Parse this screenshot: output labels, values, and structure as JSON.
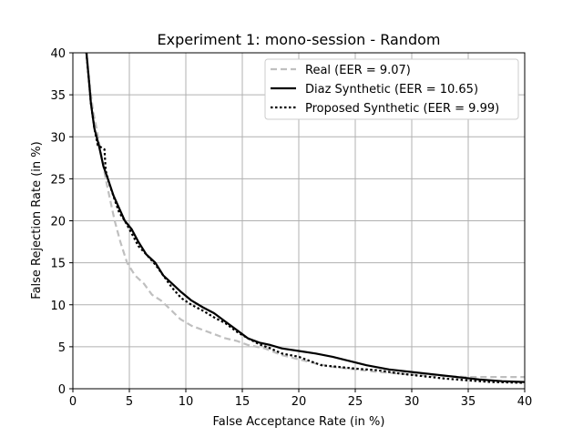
{
  "chart_data": {
    "type": "line",
    "title": "Experiment 1: mono-session - Random",
    "xlabel": "False Acceptance Rate (in %)",
    "ylabel": "False Rejection Rate (in %)",
    "xlim": [
      0,
      40
    ],
    "ylim": [
      0,
      40
    ],
    "xticks": [
      0,
      5,
      10,
      15,
      20,
      25,
      30,
      35,
      40
    ],
    "yticks": [
      0,
      5,
      10,
      15,
      20,
      25,
      30,
      35,
      40
    ],
    "grid": true,
    "legend_position": "top-right",
    "series": [
      {
        "name": "Real (EER = 9.07)",
        "color": "#bfbfbf",
        "style": "dashed",
        "points": [
          [
            1.2,
            40
          ],
          [
            1.5,
            36
          ],
          [
            1.8,
            33
          ],
          [
            2.1,
            31
          ],
          [
            2.5,
            28
          ],
          [
            2.9,
            25
          ],
          [
            3.3,
            22.5
          ],
          [
            3.7,
            20
          ],
          [
            4.2,
            17.5
          ],
          [
            4.8,
            15
          ],
          [
            5.5,
            13.5
          ],
          [
            6.3,
            12.5
          ],
          [
            7.0,
            11.2
          ],
          [
            7.8,
            10.5
          ],
          [
            8.6,
            9.5
          ],
          [
            9.5,
            8.3
          ],
          [
            10.5,
            7.5
          ],
          [
            11.5,
            7
          ],
          [
            12.5,
            6.5
          ],
          [
            13.5,
            6
          ],
          [
            14.5,
            5.7
          ],
          [
            15.5,
            5.2
          ],
          [
            17,
            4.8
          ],
          [
            18.5,
            4
          ],
          [
            20,
            3.5
          ],
          [
            21.5,
            3
          ],
          [
            23,
            2.6
          ],
          [
            25,
            2.3
          ],
          [
            27,
            2.0
          ],
          [
            29,
            1.8
          ],
          [
            31,
            1.6
          ],
          [
            33,
            1.5
          ],
          [
            35,
            1.4
          ],
          [
            37,
            1.4
          ],
          [
            40,
            1.4
          ]
        ]
      },
      {
        "name": "Diaz Synthetic (EER = 10.65)",
        "color": "#000000",
        "style": "solid",
        "points": [
          [
            1.2,
            40
          ],
          [
            1.4,
            37
          ],
          [
            1.6,
            34
          ],
          [
            1.9,
            31
          ],
          [
            2.3,
            29
          ],
          [
            2.7,
            26.5
          ],
          [
            3.1,
            25
          ],
          [
            3.6,
            23
          ],
          [
            4.1,
            21.5
          ],
          [
            4.6,
            20
          ],
          [
            5.2,
            19
          ],
          [
            5.8,
            17.5
          ],
          [
            6.5,
            16
          ],
          [
            7.3,
            15
          ],
          [
            8.0,
            13.5
          ],
          [
            8.8,
            12.5
          ],
          [
            9.6,
            11.5
          ],
          [
            10.5,
            10.5
          ],
          [
            11.5,
            9.7
          ],
          [
            12.5,
            9
          ],
          [
            13.5,
            8
          ],
          [
            14.5,
            7
          ],
          [
            15.5,
            6
          ],
          [
            16.5,
            5.5
          ],
          [
            17.5,
            5.2
          ],
          [
            18.5,
            4.8
          ],
          [
            20,
            4.5
          ],
          [
            21.5,
            4.2
          ],
          [
            23,
            3.8
          ],
          [
            24.5,
            3.3
          ],
          [
            26,
            2.8
          ],
          [
            28,
            2.3
          ],
          [
            30,
            2.0
          ],
          [
            32,
            1.7
          ],
          [
            34,
            1.4
          ],
          [
            36,
            1.1
          ],
          [
            38,
            0.9
          ],
          [
            40,
            0.8
          ]
        ]
      },
      {
        "name": "Proposed Synthetic (EER = 9.99)",
        "color": "#000000",
        "style": "dotted",
        "points": [
          [
            1.2,
            40
          ],
          [
            1.4,
            37
          ],
          [
            1.6,
            34
          ],
          [
            1.9,
            31
          ],
          [
            2.2,
            29
          ],
          [
            2.8,
            28.5
          ],
          [
            2.9,
            26
          ],
          [
            3.2,
            24.5
          ],
          [
            3.7,
            22.5
          ],
          [
            4.1,
            21
          ],
          [
            4.6,
            20
          ],
          [
            5.2,
            18.5
          ],
          [
            5.8,
            17
          ],
          [
            6.5,
            16
          ],
          [
            7.3,
            14.8
          ],
          [
            8.0,
            13.5
          ],
          [
            8.8,
            12
          ],
          [
            9.6,
            10.8
          ],
          [
            10.5,
            10
          ],
          [
            11.5,
            9.3
          ],
          [
            12.5,
            8.5
          ],
          [
            13.5,
            7.8
          ],
          [
            14.5,
            6.8
          ],
          [
            15.5,
            6
          ],
          [
            16.5,
            5.3
          ],
          [
            17.5,
            4.8
          ],
          [
            18.5,
            4.2
          ],
          [
            20,
            3.8
          ],
          [
            21,
            3.3
          ],
          [
            22,
            2.8
          ],
          [
            23.5,
            2.6
          ],
          [
            25,
            2.4
          ],
          [
            27,
            2.2
          ],
          [
            29,
            1.8
          ],
          [
            31,
            1.5
          ],
          [
            33,
            1.2
          ],
          [
            35,
            1.0
          ],
          [
            37,
            0.8
          ],
          [
            40,
            0.7
          ]
        ]
      }
    ]
  }
}
